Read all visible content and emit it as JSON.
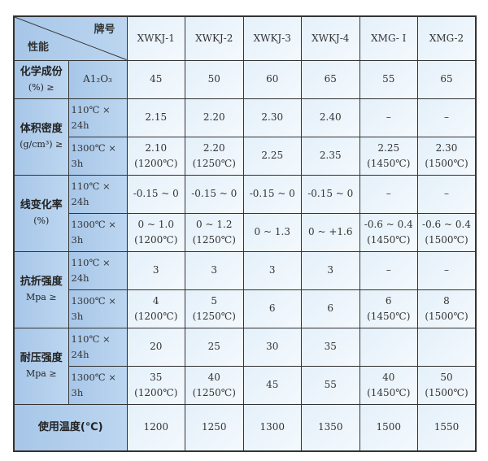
{
  "header": {
    "corner_top": "牌号",
    "corner_bottom": "性能",
    "grades": [
      "XWKJ-1",
      "XWKJ-2",
      "XWKJ-3",
      "XWKJ-4",
      "XMG- Ⅰ",
      "XMG-2"
    ]
  },
  "chem": {
    "label": "化学成份",
    "unit": "(%) ≥",
    "sub": "A1₂O₃",
    "values": [
      "45",
      "50",
      "60",
      "65",
      "55",
      "65"
    ]
  },
  "density": {
    "label": "体积密度",
    "unit": "(g/cm³) ≥",
    "rows": [
      {
        "sub": "110℃ × 24h",
        "values": [
          "2.15",
          "2.20",
          "2.30",
          "2.40",
          "–",
          "–"
        ]
      },
      {
        "sub": "1300℃ × 3h",
        "values": [
          "2.10",
          "2.20",
          "2.25",
          "2.35",
          "2.25",
          "2.30"
        ],
        "notes": [
          "(1200℃)",
          "(1250℃)",
          "",
          "",
          "(1450℃)",
          "(1500℃)"
        ]
      }
    ]
  },
  "linear": {
    "label": "线变化率",
    "unit": "(%)",
    "rows": [
      {
        "sub": "110℃ × 24h",
        "values": [
          "-0.15 ~ 0",
          "-0.15 ~ 0",
          "-0.15 ~ 0",
          "-0.15 ~ 0",
          "–",
          "–"
        ]
      },
      {
        "sub": "1300℃ × 3h",
        "values": [
          "0 ~ 1.0",
          "0 ~ 1.2",
          "0 ~ 1.3",
          "0 ~ +1.6",
          "-0.6 ~ 0.4",
          "-0.6 ~ 0.4"
        ],
        "notes": [
          "(1200℃)",
          "(1250℃)",
          "",
          "",
          "(1450℃)",
          "(1500℃)"
        ]
      }
    ]
  },
  "flexural": {
    "label": "抗折强度",
    "unit": "Mpa ≥",
    "rows": [
      {
        "sub": "110℃ × 24h",
        "values": [
          "3",
          "3",
          "3",
          "3",
          "–",
          "–"
        ]
      },
      {
        "sub": "1300℃ × 3h",
        "values": [
          "4",
          "5",
          "6",
          "6",
          "6",
          "8"
        ],
        "notes": [
          "(1200℃)",
          "(1250℃)",
          "",
          "",
          "(1450℃)",
          "(1500℃)"
        ]
      }
    ]
  },
  "compressive": {
    "label": "耐压强度",
    "unit": "Mpa ≥",
    "rows": [
      {
        "sub": "110℃ × 24h",
        "values": [
          "20",
          "25",
          "30",
          "35",
          "",
          ""
        ]
      },
      {
        "sub": "1300℃ × 3h",
        "values": [
          "35",
          "40",
          "45",
          "55",
          "40",
          "50"
        ],
        "notes": [
          "(1200℃)",
          "(1250℃)",
          "",
          "",
          "(1450℃)",
          "(1500℃)"
        ]
      }
    ]
  },
  "service": {
    "label": "使用温度(℃)",
    "values": [
      "1200",
      "1250",
      "1300",
      "1350",
      "1500",
      "1550"
    ]
  }
}
